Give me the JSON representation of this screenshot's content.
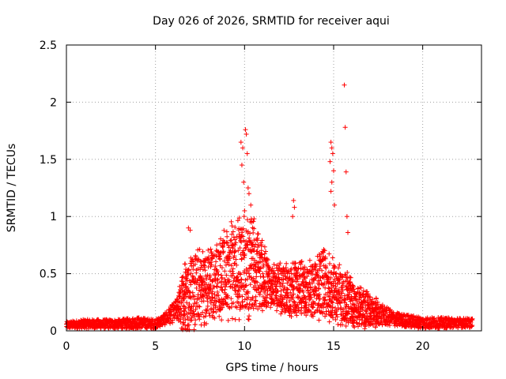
{
  "chart_data": {
    "type": "scatter",
    "title": "Day 026 of 2026, SRMTID for receiver aqui",
    "xlabel": "GPS time / hours",
    "ylabel": "SRMTID / TECUs",
    "xlim": [
      0,
      23.3
    ],
    "ylim": [
      0,
      2.5
    ],
    "x_ticks": [
      0,
      5,
      10,
      15,
      20
    ],
    "x_tick_labels": [
      "0",
      "5",
      "10",
      "15",
      "20"
    ],
    "y_ticks": [
      0,
      0.5,
      1,
      1.5,
      2,
      2.5
    ],
    "y_tick_labels": [
      "0",
      "0.5",
      "1",
      "1.5",
      "2",
      "2.5"
    ],
    "grid": true,
    "marker": "plus",
    "marker_color": "#ff0000",
    "envelope_note": "approximate per-hour baseline and spread of the point cloud",
    "envelope": [
      {
        "x": 0.0,
        "base": 0.05,
        "spread": 0.03
      },
      {
        "x": 1.0,
        "base": 0.06,
        "spread": 0.04
      },
      {
        "x": 2.0,
        "base": 0.06,
        "spread": 0.04
      },
      {
        "x": 3.0,
        "base": 0.06,
        "spread": 0.04
      },
      {
        "x": 4.0,
        "base": 0.07,
        "spread": 0.05
      },
      {
        "x": 5.0,
        "base": 0.06,
        "spread": 0.04
      },
      {
        "x": 5.5,
        "base": 0.1,
        "spread": 0.05
      },
      {
        "x": 6.2,
        "base": 0.18,
        "spread": 0.1
      },
      {
        "x": 6.8,
        "base": 0.35,
        "spread": 0.3
      },
      {
        "x": 8.0,
        "base": 0.4,
        "spread": 0.25
      },
      {
        "x": 9.5,
        "base": 0.55,
        "spread": 0.35
      },
      {
        "x": 10.5,
        "base": 0.55,
        "spread": 0.35
      },
      {
        "x": 11.5,
        "base": 0.4,
        "spread": 0.15
      },
      {
        "x": 12.5,
        "base": 0.35,
        "spread": 0.2
      },
      {
        "x": 13.5,
        "base": 0.35,
        "spread": 0.2
      },
      {
        "x": 14.5,
        "base": 0.4,
        "spread": 0.25
      },
      {
        "x": 15.5,
        "base": 0.3,
        "spread": 0.2
      },
      {
        "x": 16.5,
        "base": 0.2,
        "spread": 0.15
      },
      {
        "x": 17.5,
        "base": 0.15,
        "spread": 0.1
      },
      {
        "x": 18.5,
        "base": 0.1,
        "spread": 0.06
      },
      {
        "x": 20.0,
        "base": 0.07,
        "spread": 0.05
      },
      {
        "x": 22.8,
        "base": 0.07,
        "spread": 0.04
      }
    ],
    "outliers": [
      {
        "x": 6.85,
        "y": 0.9
      },
      {
        "x": 6.95,
        "y": 0.88
      },
      {
        "x": 9.8,
        "y": 1.65
      },
      {
        "x": 9.9,
        "y": 1.6
      },
      {
        "x": 9.85,
        "y": 1.45
      },
      {
        "x": 10.05,
        "y": 1.76
      },
      {
        "x": 10.1,
        "y": 1.72
      },
      {
        "x": 10.15,
        "y": 1.55
      },
      {
        "x": 10.2,
        "y": 1.25
      },
      {
        "x": 10.25,
        "y": 1.2
      },
      {
        "x": 10.35,
        "y": 1.1
      },
      {
        "x": 9.95,
        "y": 1.3
      },
      {
        "x": 10.0,
        "y": 1.05
      },
      {
        "x": 12.75,
        "y": 1.14
      },
      {
        "x": 12.8,
        "y": 1.08
      },
      {
        "x": 12.7,
        "y": 1.0
      },
      {
        "x": 14.85,
        "y": 1.65
      },
      {
        "x": 14.9,
        "y": 1.6
      },
      {
        "x": 14.95,
        "y": 1.55
      },
      {
        "x": 14.8,
        "y": 1.48
      },
      {
        "x": 15.0,
        "y": 1.4
      },
      {
        "x": 14.9,
        "y": 1.3
      },
      {
        "x": 14.85,
        "y": 1.22
      },
      {
        "x": 15.05,
        "y": 1.1
      },
      {
        "x": 15.6,
        "y": 2.15
      },
      {
        "x": 15.65,
        "y": 1.78
      },
      {
        "x": 15.7,
        "y": 1.39
      },
      {
        "x": 15.75,
        "y": 1.0
      },
      {
        "x": 15.8,
        "y": 0.86
      }
    ]
  }
}
